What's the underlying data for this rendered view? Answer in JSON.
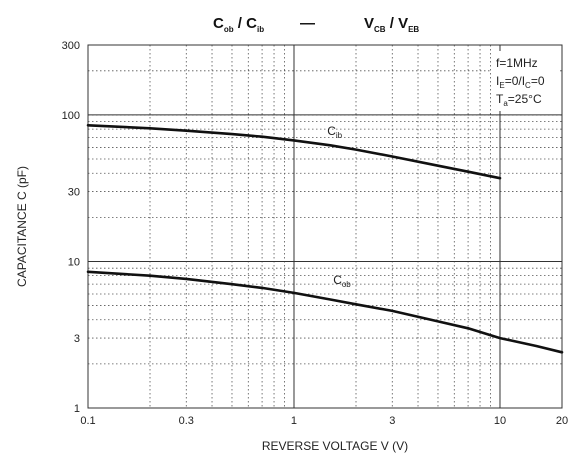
{
  "chart_data": {
    "type": "line",
    "title": {
      "left_main": "C",
      "left_sub1": "ob",
      "left_sep": " / C",
      "left_sub2": "ib",
      "dash": "—",
      "right_main": "V",
      "right_sub1": "CB",
      "right_sep": " / V",
      "right_sub2": "EB"
    },
    "xlabel": "REVERSE VOLTAGE   V   (V)",
    "ylabel": "CAPACITANCE   C   (pF)",
    "xscale": "log",
    "yscale": "log",
    "xlim": [
      0.1,
      20
    ],
    "ylim": [
      1,
      300
    ],
    "xticks": [
      {
        "value": 0.1,
        "label": "0.1"
      },
      {
        "value": 0.3,
        "label": "0.3"
      },
      {
        "value": 1,
        "label": "1"
      },
      {
        "value": 3,
        "label": "3"
      },
      {
        "value": 10,
        "label": "10"
      },
      {
        "value": 20,
        "label": "20"
      }
    ],
    "yticks": [
      {
        "value": 1,
        "label": "1"
      },
      {
        "value": 3,
        "label": "3"
      },
      {
        "value": 10,
        "label": "10"
      },
      {
        "value": 30,
        "label": "30"
      },
      {
        "value": 100,
        "label": "100"
      },
      {
        "value": 300,
        "label": "300"
      }
    ],
    "grid": true,
    "conditions": {
      "freq": "f=1MHz",
      "bias_a": "I",
      "bias_a_sub": "E",
      "bias_b": "=0/I",
      "bias_b_sub": "C",
      "bias_c": "=0",
      "temp_a": "T",
      "temp_a_sub": "a",
      "temp_b": "=25°C"
    },
    "series": [
      {
        "name": "Cib",
        "label_main": "C",
        "label_sub": "ib",
        "x": [
          0.1,
          0.2,
          0.3,
          0.5,
          0.7,
          1,
          1.5,
          2,
          3,
          5,
          7,
          10
        ],
        "y": [
          85,
          81,
          78,
          74,
          71,
          67,
          62,
          58,
          52,
          45,
          41,
          37
        ]
      },
      {
        "name": "Cob",
        "label_main": "C",
        "label_sub": "ob",
        "x": [
          0.1,
          0.2,
          0.3,
          0.5,
          0.7,
          1,
          1.5,
          2,
          3,
          5,
          7,
          10,
          15,
          20
        ],
        "y": [
          8.5,
          8.0,
          7.6,
          7.0,
          6.6,
          6.1,
          5.5,
          5.1,
          4.6,
          3.9,
          3.5,
          3.0,
          2.65,
          2.4
        ]
      }
    ]
  }
}
